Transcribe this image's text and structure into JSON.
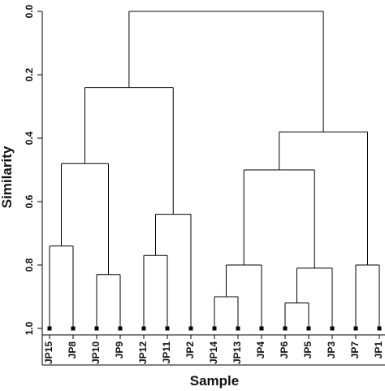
{
  "chart_data": {
    "type": "dendrogram",
    "xlabel": "Sample",
    "ylabel": "Similarity",
    "ylim": [
      0.0,
      1.0
    ],
    "y_inverted": true,
    "yticks": [
      "0.0",
      "0.2",
      "0.4",
      "0.6",
      "0.8",
      "1.0"
    ],
    "ytick_values": [
      0.0,
      0.2,
      0.4,
      0.6,
      0.8,
      1.0
    ],
    "leaves": [
      "JP15",
      "JP8",
      "JP10",
      "JP9",
      "JP12",
      "JP11",
      "JP2",
      "JP14",
      "JP13",
      "JP4",
      "JP6",
      "JP5",
      "JP3",
      "JP7",
      "JP1"
    ],
    "merges": [
      {
        "id": "m1",
        "left": "JP15",
        "right": "JP8",
        "height": 0.74
      },
      {
        "id": "m2",
        "left": "JP10",
        "right": "JP9",
        "height": 0.83
      },
      {
        "id": "m3",
        "left": "m1",
        "right": "m2",
        "height": 0.48
      },
      {
        "id": "m4",
        "left": "JP12",
        "right": "JP11",
        "height": 0.77
      },
      {
        "id": "m5",
        "left": "m4",
        "right": "JP2",
        "height": 0.64
      },
      {
        "id": "m6",
        "left": "m3",
        "right": "m5",
        "height": 0.24
      },
      {
        "id": "m7",
        "left": "JP14",
        "right": "JP13",
        "height": 0.9
      },
      {
        "id": "m8",
        "left": "m7",
        "right": "JP4",
        "height": 0.8
      },
      {
        "id": "m9",
        "left": "JP6",
        "right": "JP5",
        "height": 0.92
      },
      {
        "id": "m10",
        "left": "m9",
        "right": "JP3",
        "height": 0.81
      },
      {
        "id": "m11",
        "left": "m8",
        "right": "m10",
        "height": 0.5
      },
      {
        "id": "m12",
        "left": "JP7",
        "right": "JP1",
        "height": 0.8
      },
      {
        "id": "m13",
        "left": "m11",
        "right": "m12",
        "height": 0.38
      },
      {
        "id": "m14",
        "left": "m6",
        "right": "m13",
        "height": 0.0
      }
    ]
  }
}
